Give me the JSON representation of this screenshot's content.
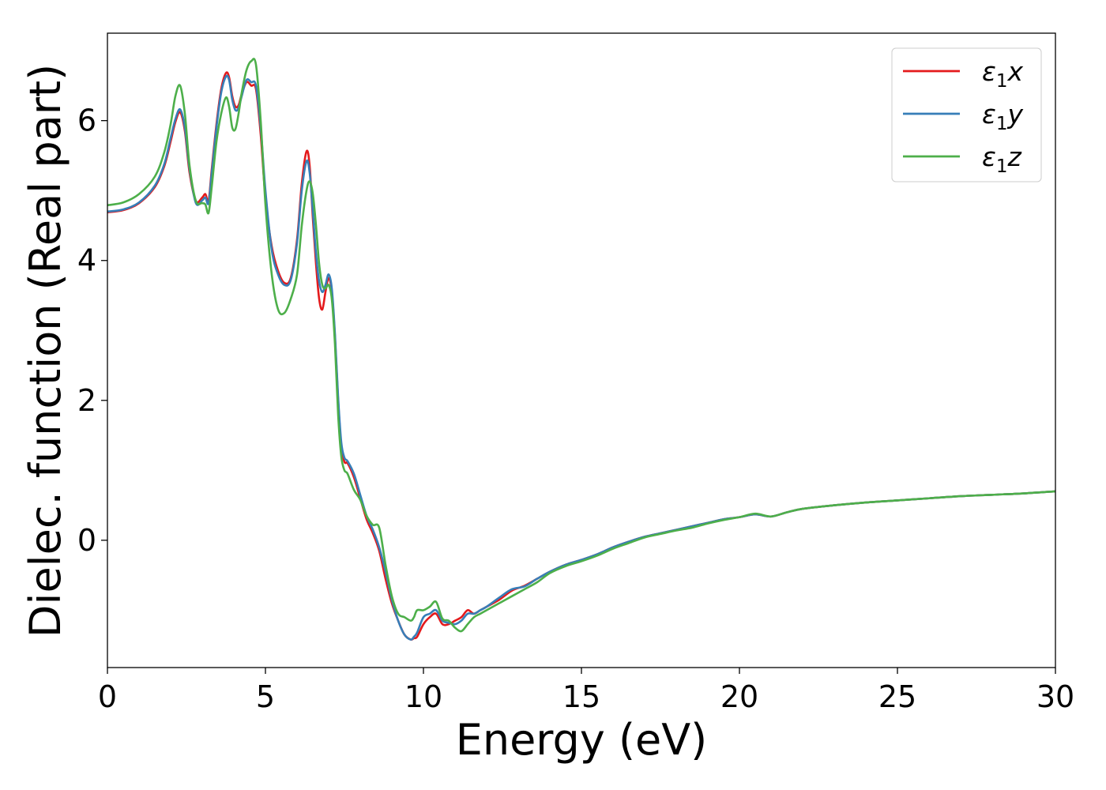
{
  "chart_data": {
    "type": "line",
    "xlabel": "Energy (eV)",
    "ylabel": "Dielec. function (Real part)",
    "xlim": [
      0,
      30
    ],
    "ylim": [
      -1.82,
      7.25
    ],
    "xticks": [
      0,
      5,
      10,
      15,
      20,
      25,
      30
    ],
    "yticks": [
      0,
      2,
      4,
      6
    ],
    "grid": false,
    "legend_position": "top-right",
    "series": [
      {
        "name": "ε1x",
        "legend": {
          "symbol": "ε",
          "subscript": "1",
          "suffix": "x"
        },
        "color": "#e41a1c",
        "x": [
          0,
          0.5,
          1.0,
          1.5,
          1.8,
          2.0,
          2.15,
          2.3,
          2.45,
          2.6,
          2.8,
          3.0,
          3.1,
          3.2,
          3.3,
          3.45,
          3.6,
          3.75,
          3.85,
          3.95,
          4.05,
          4.15,
          4.25,
          4.4,
          4.55,
          4.7,
          4.85,
          5.0,
          5.2,
          5.4,
          5.6,
          5.8,
          6.0,
          6.15,
          6.3,
          6.4,
          6.5,
          6.6,
          6.7,
          6.8,
          6.9,
          7.0,
          7.1,
          7.2,
          7.3,
          7.4,
          7.5,
          7.6,
          7.8,
          8.0,
          8.2,
          8.4,
          8.6,
          8.8,
          9.0,
          9.2,
          9.4,
          9.6,
          9.7,
          9.8,
          10.0,
          10.2,
          10.4,
          10.6,
          10.8,
          11.0,
          11.2,
          11.4,
          11.6,
          11.8,
          12.0,
          12.4,
          12.8,
          13.2,
          13.6,
          14.0,
          14.5,
          15.0,
          15.5,
          16.0,
          16.5,
          17.0,
          17.5,
          18.0,
          18.5,
          19.0,
          19.5,
          20.0,
          20.5,
          21.0,
          21.5,
          22.0,
          23.0,
          24.0,
          25.0,
          26.0,
          27.0,
          28.0,
          29.0,
          30.0
        ],
        "y": [
          4.69,
          4.72,
          4.82,
          5.05,
          5.35,
          5.7,
          5.98,
          6.12,
          5.85,
          5.25,
          4.85,
          4.9,
          4.95,
          4.85,
          5.3,
          5.95,
          6.45,
          6.68,
          6.62,
          6.35,
          6.2,
          6.22,
          6.38,
          6.55,
          6.5,
          6.45,
          5.8,
          4.9,
          4.2,
          3.85,
          3.68,
          3.75,
          4.3,
          5.1,
          5.56,
          5.35,
          4.6,
          3.95,
          3.45,
          3.3,
          3.55,
          3.75,
          3.55,
          2.9,
          2.0,
          1.35,
          1.12,
          1.1,
          0.9,
          0.6,
          0.3,
          0.1,
          -0.15,
          -0.55,
          -0.9,
          -1.15,
          -1.35,
          -1.42,
          -1.4,
          -1.38,
          -1.2,
          -1.1,
          -1.05,
          -1.2,
          -1.2,
          -1.15,
          -1.1,
          -1.0,
          -1.05,
          -1.0,
          -0.95,
          -0.85,
          -0.72,
          -0.65,
          -0.55,
          -0.45,
          -0.35,
          -0.28,
          -0.2,
          -0.1,
          -0.02,
          0.05,
          0.1,
          0.15,
          0.2,
          0.25,
          0.3,
          0.33,
          0.37,
          0.34,
          0.4,
          0.45,
          0.5,
          0.54,
          0.57,
          0.6,
          0.63,
          0.65,
          0.67,
          0.7
        ]
      },
      {
        "name": "ε1y",
        "legend": {
          "symbol": "ε",
          "subscript": "1",
          "suffix": "y"
        },
        "color": "#377eb8",
        "x": [
          0,
          0.5,
          1.0,
          1.5,
          1.8,
          2.0,
          2.15,
          2.3,
          2.45,
          2.6,
          2.8,
          3.0,
          3.1,
          3.2,
          3.3,
          3.45,
          3.6,
          3.75,
          3.85,
          3.95,
          4.05,
          4.15,
          4.25,
          4.4,
          4.55,
          4.7,
          4.85,
          5.0,
          5.2,
          5.4,
          5.6,
          5.8,
          6.0,
          6.15,
          6.3,
          6.4,
          6.5,
          6.6,
          6.7,
          6.8,
          6.9,
          7.0,
          7.1,
          7.2,
          7.3,
          7.4,
          7.5,
          7.6,
          7.8,
          8.0,
          8.2,
          8.4,
          8.6,
          8.8,
          9.0,
          9.2,
          9.4,
          9.6,
          9.7,
          9.8,
          10.0,
          10.2,
          10.4,
          10.6,
          10.8,
          11.0,
          11.2,
          11.4,
          11.6,
          11.8,
          12.0,
          12.4,
          12.8,
          13.2,
          13.6,
          14.0,
          14.5,
          15.0,
          15.5,
          16.0,
          16.5,
          17.0,
          17.5,
          18.0,
          18.5,
          19.0,
          19.5,
          20.0,
          20.5,
          21.0,
          21.5,
          22.0,
          23.0,
          24.0,
          25.0,
          26.0,
          27.0,
          28.0,
          29.0,
          30.0
        ],
        "y": [
          4.7,
          4.73,
          4.83,
          5.07,
          5.38,
          5.75,
          6.02,
          6.16,
          5.9,
          5.3,
          4.82,
          4.86,
          4.9,
          4.82,
          5.25,
          5.9,
          6.4,
          6.63,
          6.58,
          6.3,
          6.15,
          6.18,
          6.35,
          6.58,
          6.55,
          6.5,
          5.9,
          5.0,
          4.15,
          3.8,
          3.65,
          3.72,
          4.25,
          5.0,
          5.42,
          5.25,
          4.7,
          4.1,
          3.7,
          3.55,
          3.65,
          3.8,
          3.6,
          2.95,
          2.05,
          1.4,
          1.18,
          1.13,
          0.95,
          0.65,
          0.35,
          0.15,
          -0.1,
          -0.45,
          -0.85,
          -1.15,
          -1.35,
          -1.42,
          -1.38,
          -1.32,
          -1.1,
          -1.05,
          -1.0,
          -1.15,
          -1.18,
          -1.2,
          -1.15,
          -1.05,
          -1.05,
          -1.0,
          -0.95,
          -0.82,
          -0.7,
          -0.66,
          -0.55,
          -0.45,
          -0.35,
          -0.28,
          -0.2,
          -0.1,
          -0.02,
          0.05,
          0.1,
          0.15,
          0.2,
          0.25,
          0.3,
          0.33,
          0.37,
          0.34,
          0.4,
          0.45,
          0.5,
          0.54,
          0.57,
          0.6,
          0.63,
          0.65,
          0.67,
          0.7
        ]
      },
      {
        "name": "ε1z",
        "legend": {
          "symbol": "ε",
          "subscript": "1",
          "suffix": "z"
        },
        "color": "#4daf4a",
        "x": [
          0,
          0.5,
          1.0,
          1.5,
          1.8,
          2.0,
          2.15,
          2.3,
          2.45,
          2.6,
          2.8,
          3.0,
          3.1,
          3.2,
          3.3,
          3.45,
          3.6,
          3.75,
          3.85,
          3.95,
          4.05,
          4.15,
          4.25,
          4.4,
          4.55,
          4.7,
          4.85,
          5.0,
          5.2,
          5.4,
          5.6,
          5.8,
          6.0,
          6.15,
          6.3,
          6.4,
          6.5,
          6.6,
          6.7,
          6.8,
          6.9,
          7.0,
          7.1,
          7.2,
          7.3,
          7.4,
          7.5,
          7.6,
          7.8,
          8.0,
          8.2,
          8.4,
          8.6,
          8.8,
          9.0,
          9.2,
          9.4,
          9.6,
          9.7,
          9.8,
          10.0,
          10.2,
          10.4,
          10.6,
          10.8,
          11.0,
          11.2,
          11.4,
          11.6,
          11.8,
          12.0,
          12.4,
          12.8,
          13.2,
          13.6,
          14.0,
          14.5,
          15.0,
          15.5,
          16.0,
          16.5,
          17.0,
          17.5,
          18.0,
          18.5,
          19.0,
          19.5,
          20.0,
          20.5,
          21.0,
          21.5,
          22.0,
          23.0,
          24.0,
          25.0,
          26.0,
          27.0,
          28.0,
          29.0,
          30.0
        ],
        "y": [
          4.79,
          4.83,
          4.95,
          5.2,
          5.55,
          5.95,
          6.35,
          6.5,
          6.1,
          5.35,
          4.85,
          4.82,
          4.8,
          4.68,
          5.05,
          5.7,
          6.1,
          6.33,
          6.2,
          5.9,
          5.88,
          6.1,
          6.4,
          6.72,
          6.85,
          6.8,
          6.0,
          4.8,
          3.8,
          3.3,
          3.25,
          3.45,
          3.8,
          4.5,
          5.0,
          5.13,
          4.95,
          4.5,
          3.95,
          3.65,
          3.6,
          3.65,
          3.45,
          2.8,
          1.8,
          1.2,
          1.0,
          0.95,
          0.72,
          0.58,
          0.35,
          0.22,
          0.18,
          -0.35,
          -0.8,
          -1.05,
          -1.1,
          -1.15,
          -1.1,
          -1.0,
          -1.0,
          -0.95,
          -0.88,
          -1.12,
          -1.15,
          -1.25,
          -1.3,
          -1.2,
          -1.1,
          -1.05,
          -1.0,
          -0.9,
          -0.8,
          -0.7,
          -0.6,
          -0.47,
          -0.37,
          -0.3,
          -0.22,
          -0.12,
          -0.04,
          0.04,
          0.09,
          0.14,
          0.18,
          0.24,
          0.29,
          0.33,
          0.38,
          0.34,
          0.4,
          0.45,
          0.5,
          0.54,
          0.57,
          0.6,
          0.63,
          0.65,
          0.67,
          0.7
        ]
      }
    ]
  }
}
